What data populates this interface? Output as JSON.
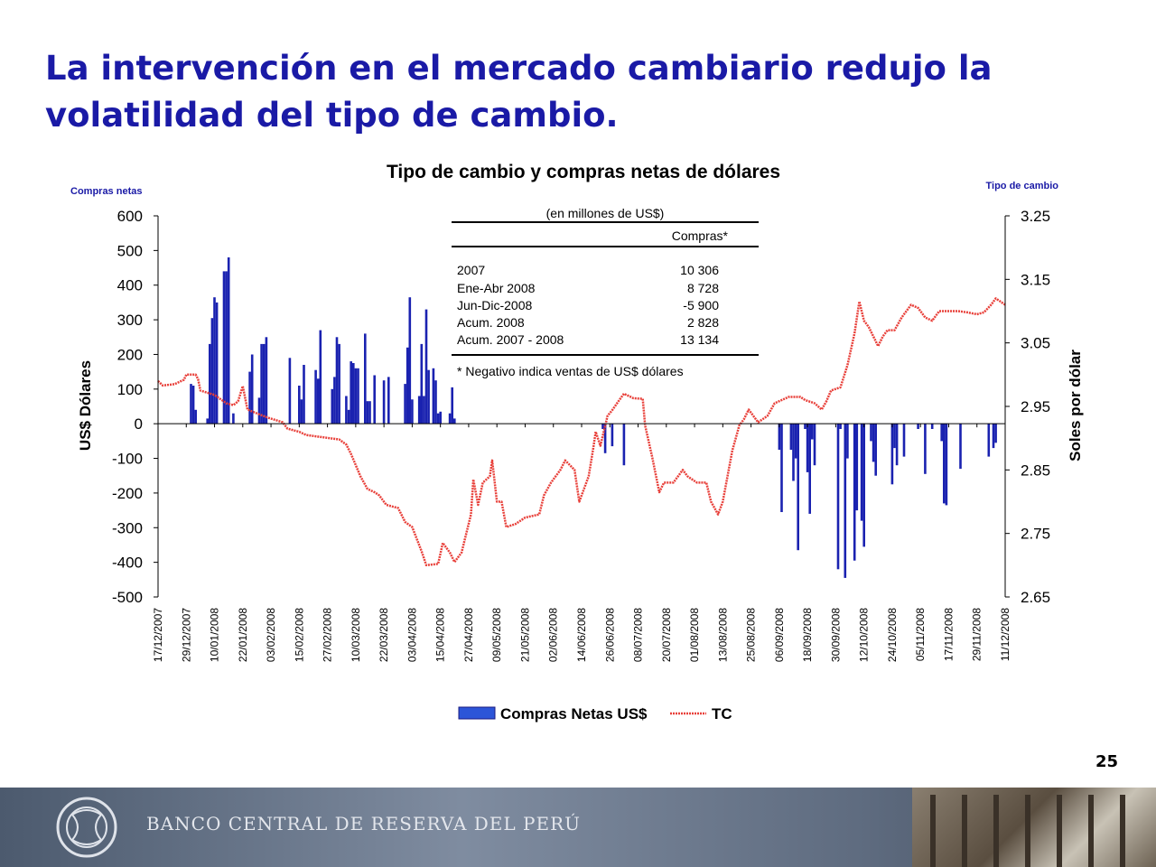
{
  "slide": {
    "title": "La intervención en el mercado cambiario redujo la volatilidad del tipo de cambio.",
    "page_number": "25",
    "footer_text": "BANCO CENTRAL DE RESERVA DEL PERÚ"
  },
  "colors": {
    "title": "#1a1aa6",
    "bars": "#1a22b0",
    "line": "#e8403a",
    "right_axis_label": "#1a1aa6"
  },
  "chart_data": {
    "type": "bar+line",
    "title": "Tipo de cambio y compras netas de dólares",
    "left_axis_caption": "Compras netas",
    "right_axis_caption": "Tipo de cambio",
    "ylabel_left": "US$ Dólares",
    "ylabel_right": "Soles por dólar",
    "ylim_left": [
      -500,
      600
    ],
    "ylim_right": [
      2.65,
      3.25
    ],
    "yticks_left": [
      "600",
      "500",
      "400",
      "300",
      "200",
      "100",
      "0",
      "-100",
      "-200",
      "-300",
      "-400",
      "-500"
    ],
    "yticks_right": [
      "3.25",
      "3.15",
      "3.05",
      "2.95",
      "2.85",
      "2.75",
      "2.65"
    ],
    "xticks": [
      "17/12/2007",
      "29/12/2007",
      "10/01/2008",
      "22/01/2008",
      "03/02/2008",
      "15/02/2008",
      "27/02/2008",
      "10/03/2008",
      "22/03/2008",
      "03/04/2008",
      "15/04/2008",
      "27/04/2008",
      "09/05/2008",
      "21/05/2008",
      "02/06/2008",
      "14/06/2008",
      "26/06/2008",
      "08/07/2008",
      "20/07/2008",
      "01/08/2008",
      "13/08/2008",
      "25/08/2008",
      "06/09/2008",
      "18/09/2008",
      "30/09/2008",
      "12/10/2008",
      "24/10/2008",
      "05/11/2008",
      "17/11/2008",
      "29/11/2008",
      "11/12/2008"
    ],
    "x_start": "2007-12-17",
    "x_end": "2008-12-11",
    "compras_netas": [
      [
        "2007-12-31",
        115
      ],
      [
        "2008-01-01",
        110
      ],
      [
        "2008-01-02",
        40
      ],
      [
        "2008-01-07",
        15
      ],
      [
        "2008-01-08",
        230
      ],
      [
        "2008-01-09",
        305
      ],
      [
        "2008-01-10",
        365
      ],
      [
        "2008-01-11",
        350
      ],
      [
        "2008-01-14",
        440
      ],
      [
        "2008-01-15",
        440
      ],
      [
        "2008-01-16",
        480
      ],
      [
        "2008-01-18",
        30
      ],
      [
        "2008-01-25",
        150
      ],
      [
        "2008-01-26",
        200
      ],
      [
        "2008-01-29",
        75
      ],
      [
        "2008-01-30",
        230
      ],
      [
        "2008-01-31",
        230
      ],
      [
        "2008-02-01",
        250
      ],
      [
        "2008-02-11",
        190
      ],
      [
        "2008-02-15",
        110
      ],
      [
        "2008-02-16",
        70
      ],
      [
        "2008-02-17",
        170
      ],
      [
        "2008-02-22",
        155
      ],
      [
        "2008-02-23",
        130
      ],
      [
        "2008-02-24",
        270
      ],
      [
        "2008-02-29",
        100
      ],
      [
        "2008-03-01",
        135
      ],
      [
        "2008-03-02",
        250
      ],
      [
        "2008-03-03",
        230
      ],
      [
        "2008-03-06",
        80
      ],
      [
        "2008-03-07",
        40
      ],
      [
        "2008-03-08",
        180
      ],
      [
        "2008-03-09",
        175
      ],
      [
        "2008-03-10",
        160
      ],
      [
        "2008-03-11",
        160
      ],
      [
        "2008-03-14",
        260
      ],
      [
        "2008-03-15",
        65
      ],
      [
        "2008-03-16",
        65
      ],
      [
        "2008-03-18",
        140
      ],
      [
        "2008-03-22",
        125
      ],
      [
        "2008-03-24",
        135
      ],
      [
        "2008-03-31",
        115
      ],
      [
        "2008-04-01",
        220
      ],
      [
        "2008-04-02",
        365
      ],
      [
        "2008-04-03",
        70
      ],
      [
        "2008-04-06",
        80
      ],
      [
        "2008-04-07",
        230
      ],
      [
        "2008-04-08",
        80
      ],
      [
        "2008-04-09",
        330
      ],
      [
        "2008-04-10",
        155
      ],
      [
        "2008-04-12",
        160
      ],
      [
        "2008-04-13",
        125
      ],
      [
        "2008-04-14",
        30
      ],
      [
        "2008-04-15",
        35
      ],
      [
        "2008-04-19",
        30
      ],
      [
        "2008-04-20",
        105
      ],
      [
        "2008-04-21",
        15
      ],
      [
        "2008-06-23",
        -15
      ],
      [
        "2008-06-24",
        -85
      ],
      [
        "2008-06-27",
        -65
      ],
      [
        "2008-07-02",
        -120
      ],
      [
        "2008-09-06",
        -75
      ],
      [
        "2008-09-07",
        -255
      ],
      [
        "2008-09-11",
        -75
      ],
      [
        "2008-09-12",
        -165
      ],
      [
        "2008-09-13",
        -100
      ],
      [
        "2008-09-14",
        -365
      ],
      [
        "2008-09-17",
        -15
      ],
      [
        "2008-09-18",
        -140
      ],
      [
        "2008-09-19",
        -260
      ],
      [
        "2008-09-20",
        -45
      ],
      [
        "2008-09-21",
        -120
      ],
      [
        "2008-10-01",
        -420
      ],
      [
        "2008-10-02",
        -15
      ],
      [
        "2008-10-04",
        -445
      ],
      [
        "2008-10-05",
        -100
      ],
      [
        "2008-10-08",
        -395
      ],
      [
        "2008-10-09",
        -250
      ],
      [
        "2008-10-11",
        -280
      ],
      [
        "2008-10-12",
        -355
      ],
      [
        "2008-10-15",
        -50
      ],
      [
        "2008-10-16",
        -110
      ],
      [
        "2008-10-17",
        -150
      ],
      [
        "2008-10-24",
        -175
      ],
      [
        "2008-10-25",
        -70
      ],
      [
        "2008-10-26",
        -120
      ],
      [
        "2008-10-29",
        -95
      ],
      [
        "2008-11-04",
        -15
      ],
      [
        "2008-11-07",
        -145
      ],
      [
        "2008-11-10",
        -15
      ],
      [
        "2008-11-14",
        -50
      ],
      [
        "2008-11-15",
        -230
      ],
      [
        "2008-11-16",
        -235
      ],
      [
        "2008-11-22",
        -130
      ],
      [
        "2008-12-04",
        -95
      ],
      [
        "2008-12-06",
        -70
      ],
      [
        "2008-12-07",
        -55
      ]
    ],
    "tipo_de_cambio": [
      [
        "2007-12-17",
        2.99
      ],
      [
        "2007-12-19",
        2.983
      ],
      [
        "2007-12-24",
        2.985
      ],
      [
        "2007-12-28",
        2.992
      ],
      [
        "2007-12-29",
        3.0
      ],
      [
        "2008-01-02",
        3.0
      ],
      [
        "2008-01-03",
        2.993
      ],
      [
        "2008-01-04",
        2.975
      ],
      [
        "2008-01-10",
        2.968
      ],
      [
        "2008-01-15",
        2.955
      ],
      [
        "2008-01-18",
        2.952
      ],
      [
        "2008-01-20",
        2.958
      ],
      [
        "2008-01-22",
        2.982
      ],
      [
        "2008-01-24",
        2.945
      ],
      [
        "2008-01-30",
        2.936
      ],
      [
        "2008-02-02",
        2.932
      ],
      [
        "2008-02-08",
        2.925
      ],
      [
        "2008-02-10",
        2.915
      ],
      [
        "2008-02-15",
        2.91
      ],
      [
        "2008-02-18",
        2.905
      ],
      [
        "2008-02-28",
        2.9
      ],
      [
        "2008-03-03",
        2.898
      ],
      [
        "2008-03-06",
        2.89
      ],
      [
        "2008-03-08",
        2.875
      ],
      [
        "2008-03-12",
        2.84
      ],
      [
        "2008-03-15",
        2.82
      ],
      [
        "2008-03-18",
        2.815
      ],
      [
        "2008-03-20",
        2.81
      ],
      [
        "2008-03-23",
        2.795
      ],
      [
        "2008-03-28",
        2.79
      ],
      [
        "2008-03-31",
        2.768
      ],
      [
        "2008-04-03",
        2.76
      ],
      [
        "2008-04-07",
        2.722
      ],
      [
        "2008-04-09",
        2.7
      ],
      [
        "2008-04-14",
        2.702
      ],
      [
        "2008-04-16",
        2.735
      ],
      [
        "2008-04-19",
        2.72
      ],
      [
        "2008-04-21",
        2.705
      ],
      [
        "2008-04-24",
        2.72
      ],
      [
        "2008-04-28",
        2.78
      ],
      [
        "2008-04-29",
        2.835
      ],
      [
        "2008-05-01",
        2.795
      ],
      [
        "2008-05-03",
        2.83
      ],
      [
        "2008-05-06",
        2.84
      ],
      [
        "2008-05-07",
        2.865
      ],
      [
        "2008-05-09",
        2.8
      ],
      [
        "2008-05-11",
        2.8
      ],
      [
        "2008-05-13",
        2.76
      ],
      [
        "2008-05-17",
        2.765
      ],
      [
        "2008-05-21",
        2.775
      ],
      [
        "2008-05-27",
        2.78
      ],
      [
        "2008-05-29",
        2.81
      ],
      [
        "2008-06-01",
        2.83
      ],
      [
        "2008-06-05",
        2.85
      ],
      [
        "2008-06-07",
        2.865
      ],
      [
        "2008-06-11",
        2.85
      ],
      [
        "2008-06-13",
        2.8
      ],
      [
        "2008-06-17",
        2.84
      ],
      [
        "2008-06-19",
        2.885
      ],
      [
        "2008-06-20",
        2.91
      ],
      [
        "2008-06-22",
        2.888
      ],
      [
        "2008-06-25",
        2.935
      ],
      [
        "2008-06-27",
        2.944
      ],
      [
        "2008-06-30",
        2.96
      ],
      [
        "2008-07-02",
        2.97
      ],
      [
        "2008-07-06",
        2.963
      ],
      [
        "2008-07-10",
        2.962
      ],
      [
        "2008-07-11",
        2.92
      ],
      [
        "2008-07-14",
        2.87
      ],
      [
        "2008-07-17",
        2.815
      ],
      [
        "2008-07-19",
        2.83
      ],
      [
        "2008-07-23",
        2.83
      ],
      [
        "2008-07-27",
        2.85
      ],
      [
        "2008-07-29",
        2.84
      ],
      [
        "2008-08-02",
        2.83
      ],
      [
        "2008-08-06",
        2.83
      ],
      [
        "2008-08-08",
        2.8
      ],
      [
        "2008-08-11",
        2.78
      ],
      [
        "2008-08-13",
        2.8
      ],
      [
        "2008-08-17",
        2.88
      ],
      [
        "2008-08-20",
        2.92
      ],
      [
        "2008-08-22",
        2.93
      ],
      [
        "2008-08-24",
        2.945
      ],
      [
        "2008-08-28",
        2.925
      ],
      [
        "2008-09-01",
        2.935
      ],
      [
        "2008-09-04",
        2.955
      ],
      [
        "2008-09-07",
        2.96
      ],
      [
        "2008-09-10",
        2.965
      ],
      [
        "2008-09-15",
        2.965
      ],
      [
        "2008-09-17",
        2.96
      ],
      [
        "2008-09-21",
        2.955
      ],
      [
        "2008-09-24",
        2.945
      ],
      [
        "2008-09-26",
        2.958
      ],
      [
        "2008-09-28",
        2.975
      ],
      [
        "2008-10-02",
        2.98
      ],
      [
        "2008-10-05",
        3.015
      ],
      [
        "2008-10-08",
        3.065
      ],
      [
        "2008-10-10",
        3.115
      ],
      [
        "2008-10-12",
        3.085
      ],
      [
        "2008-10-14",
        3.075
      ],
      [
        "2008-10-18",
        3.045
      ],
      [
        "2008-10-20",
        3.06
      ],
      [
        "2008-10-22",
        3.07
      ],
      [
        "2008-10-25",
        3.07
      ],
      [
        "2008-10-28",
        3.09
      ],
      [
        "2008-11-01",
        3.11
      ],
      [
        "2008-11-04",
        3.105
      ],
      [
        "2008-11-07",
        3.09
      ],
      [
        "2008-11-10",
        3.085
      ],
      [
        "2008-11-13",
        3.1
      ],
      [
        "2008-11-17",
        3.1
      ],
      [
        "2008-11-21",
        3.1
      ],
      [
        "2008-11-25",
        3.098
      ],
      [
        "2008-11-29",
        3.095
      ],
      [
        "2008-12-02",
        3.098
      ],
      [
        "2008-12-05",
        3.11
      ],
      [
        "2008-12-07",
        3.12
      ],
      [
        "2008-12-09",
        3.115
      ],
      [
        "2008-12-11",
        3.11
      ]
    ],
    "legend": {
      "bars": "Compras Netas US$",
      "line": "TC",
      "placement": "bottom"
    },
    "grid": false,
    "inset_table": {
      "caption": "(en millones de US$)",
      "column_header": "Compras*",
      "rows": [
        {
          "label": "2007",
          "value": "10 306"
        },
        {
          "label": "Ene-Abr 2008",
          "value": "8 728"
        },
        {
          "label": "Jun-Dic-2008",
          "value": "-5 900"
        },
        {
          "label": "Acum. 2008",
          "value": "2 828"
        },
        {
          "label": "Acum. 2007 - 2008",
          "value": "13 134"
        }
      ],
      "footnote": "* Negativo indica ventas de US$ dólares"
    }
  }
}
